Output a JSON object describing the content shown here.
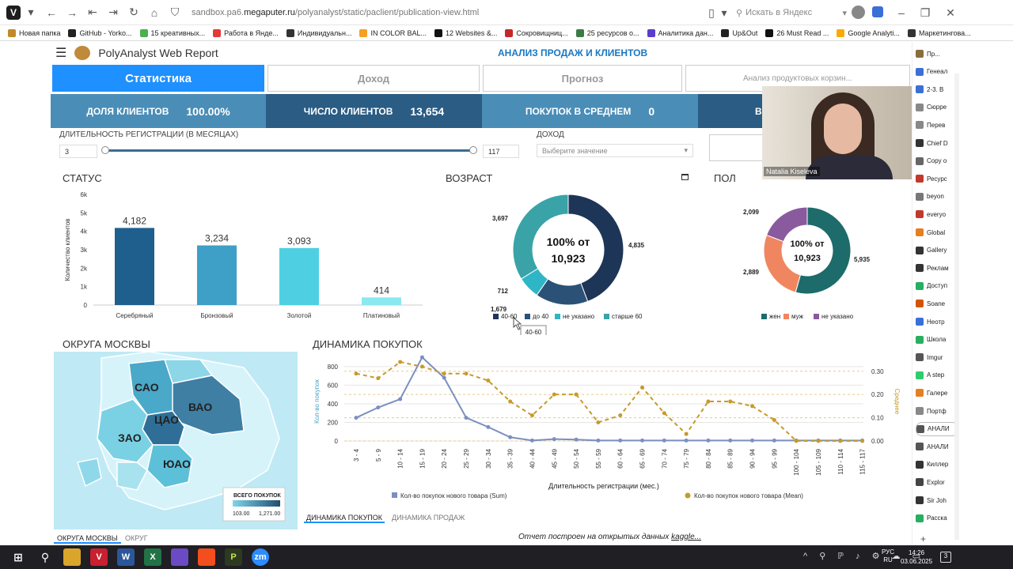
{
  "browser": {
    "url_prefix": "sandbox.pa6.",
    "url_domain": "megaputer.ru",
    "url_path": "/polyanalyst/static/paclient/publication-view.html",
    "search_placeholder": "Искать в Яндекс",
    "bookmarks": [
      "Новая папка",
      "GitHub - Yorko...",
      "15 креативных...",
      "Работа в Янде...",
      "Индивидуальн...",
      "IN COLOR BAL...",
      "12 Websites &...",
      "Сокровищниц...",
      "25 ресурсов о...",
      "Аналитика дан...",
      "Up&Out",
      "26 Must Read ...",
      "Google Analyti...",
      "Маркетингова..."
    ]
  },
  "app": {
    "title": "PolyAnalyst Web Report",
    "subtitle": "АНАЛИЗ ПРОДАЖ И КЛИЕНТОВ",
    "tabs": [
      "Статистика",
      "Доход",
      "Прогноз",
      "Анализ продуктовых корзин..."
    ]
  },
  "kpis": [
    {
      "label": "ДОЛЯ КЛИЕНТОВ",
      "value": "100.00%",
      "color": "#4a8db7"
    },
    {
      "label": "ЧИСЛО КЛИЕНТОВ",
      "value": "13,654",
      "color": "#2a5c84"
    },
    {
      "label": "ПОКУПОК В СРЕДНЕМ",
      "value": "0",
      "color": "#4a8db7"
    },
    {
      "label": "В",
      "value": "",
      "color": "#2a5c84"
    }
  ],
  "filters": {
    "reg_label": "ДЛИТЕЛЬНОСТЬ РЕГИСТРАЦИИ (В МЕСЯЦАХ)",
    "reg_min": "3",
    "reg_max": "117",
    "income_label": "ДОХОД",
    "income_placeholder": "Выберите значение"
  },
  "webcam_name": "Natalia Kiseleva",
  "chart_data": [
    {
      "type": "bar",
      "title": "СТАТУС",
      "ylabel": "Количество клиентов",
      "categories": [
        "Серебряный",
        "Бронзовый",
        "Золотой",
        "Платиновый"
      ],
      "values": [
        4182,
        3234,
        3093,
        414
      ],
      "value_labels": [
        "4,182",
        "3,234",
        "3,093",
        "414"
      ],
      "yticks": [
        "0",
        "1k",
        "2k",
        "3k",
        "4k",
        "5k",
        "6k"
      ],
      "ylim": [
        0,
        6000
      ],
      "colors": [
        "#1f5f8e",
        "#3e9fc7",
        "#4fd0e2",
        "#8ae8f1"
      ]
    },
    {
      "type": "pie",
      "title": "ВОЗРАСТ",
      "center_top": "100% от",
      "center_bottom": "10,923",
      "labels": [
        "40-60",
        "до 40",
        "не указано",
        "старше 60"
      ],
      "values": [
        4835,
        1679,
        712,
        3697
      ],
      "value_labels": [
        "4,835",
        "1,679",
        "712",
        "3,697"
      ],
      "colors": [
        "#1d3557",
        "#2b5276",
        "#2fb6c6",
        "#3aa3a8"
      ],
      "tooltip": "40-60"
    },
    {
      "type": "pie",
      "title": "ПОЛ",
      "center_top": "100% от",
      "center_bottom": "10,923",
      "labels": [
        "жен",
        "муж",
        "не указано"
      ],
      "values": [
        5935,
        2889,
        2099
      ],
      "value_labels": [
        "5,935",
        "2,889",
        "2,099"
      ],
      "colors": [
        "#1e6b6b",
        "#f08660",
        "#8a5a9e"
      ]
    },
    {
      "type": "line",
      "title": "ДИНАМИКА ПОКУПОК",
      "xlabel": "Длительность регистрации (мес.)",
      "ylabel": "Кол-во покупок",
      "y2label": "Среднее",
      "categories": [
        "3 - 4",
        "5 - 9",
        "10 - 14",
        "15 - 19",
        "20 - 24",
        "25 - 29",
        "30 - 34",
        "35 - 39",
        "40 - 44",
        "45 - 49",
        "50 - 54",
        "55 - 59",
        "60 - 64",
        "65 - 69",
        "70 - 74",
        "75 - 79",
        "80 - 84",
        "85 - 89",
        "90 - 94",
        "95 - 99",
        "100 - 104",
        "105 - 109",
        "110 - 114",
        "115 - 117"
      ],
      "yticks": [
        "0",
        "200",
        "400",
        "600",
        "800"
      ],
      "ylim": [
        0,
        850
      ],
      "y2ticks": [
        "0.00",
        "0.10",
        "0.20",
        "0.30"
      ],
      "y2lim": [
        0,
        0.34
      ],
      "series": [
        {
          "name": "Кол-во покупок нового товара (Sum)",
          "color": "#7b8fc0",
          "axis": "left",
          "values": [
            250,
            360,
            450,
            900,
            680,
            250,
            150,
            40,
            5,
            20,
            15,
            5,
            5,
            5,
            5,
            5,
            5,
            5,
            5,
            5,
            5,
            5,
            5,
            5
          ]
        },
        {
          "name": "Кол-во покупок нового товара (Mean)",
          "color": "#c79a2a",
          "axis": "right",
          "values": [
            0.29,
            0.27,
            0.34,
            0.32,
            0.29,
            0.29,
            0.26,
            0.17,
            0.11,
            0.2,
            0.2,
            0.08,
            0.11,
            0.23,
            0.12,
            0.03,
            0.17,
            0.17,
            0.15,
            0.09,
            0,
            0,
            0,
            0
          ]
        }
      ]
    }
  ],
  "map": {
    "title": "ОКРУГА МОСКВЫ",
    "districts": [
      "САО",
      "ВАО",
      "ЦАО",
      "ЗАО",
      "ЮАО"
    ],
    "legend_title": "ВСЕГО ПОКУПОК",
    "legend_min": "103.00",
    "legend_max": "1,271.00",
    "tabs": [
      "ОКРУГА МОСКВЫ",
      "ОКРУГ"
    ]
  },
  "dyn_tabs": [
    "ДИНАМИКА ПОКУПОК",
    "ДИНАМИКА ПРОДАЖ"
  ],
  "footer": {
    "text": "Отчет построен на открытых данных ",
    "link": "kaggle..."
  },
  "sidebar": [
    "Пр...",
    "Генеал",
    "2-3. В",
    "Сюрре",
    "Перев",
    "Chief D",
    "Copy o",
    "Ресурс",
    "beyon",
    "everyo",
    "Global",
    "Gallery",
    "Реклам",
    "Доступ",
    "Soane",
    "Неотр",
    "Школа",
    "Imgur",
    "A step",
    "Галере",
    "Портф",
    "АНАЛИ",
    "АНАЛИ",
    "Киллер",
    "Explor",
    "Sir Joh",
    "Расска"
  ],
  "taskbar": {
    "lang": "РУС",
    "lang2": "RU",
    "time": "14:26",
    "date": "03.06.2025"
  }
}
